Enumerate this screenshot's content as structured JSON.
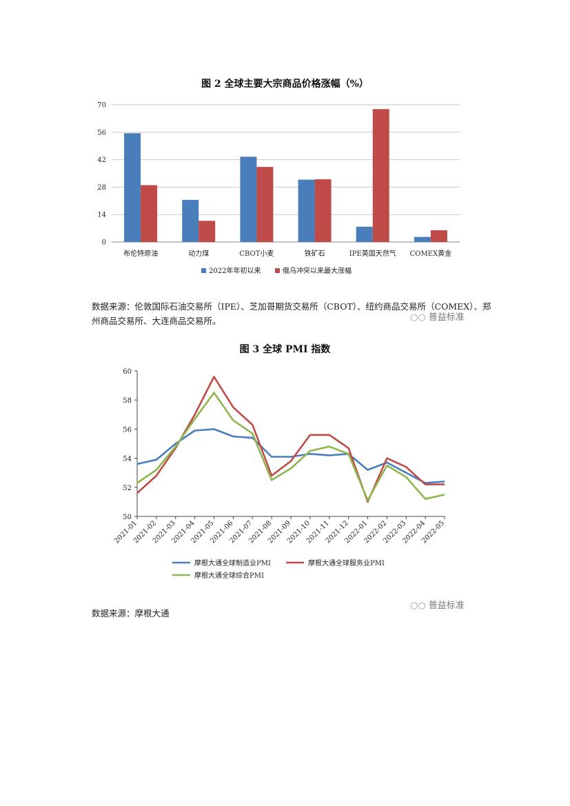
{
  "figure2": {
    "title": "图 2  全球主要大宗商品价格涨幅（%）",
    "source": "数据来源：伦敦国际石油交易所（IPE）、芝加哥期货交易所（CBOT）、纽约商品交易所（COMEX）、郑州商品交易所、大连商品交易所。",
    "watermark": "普益标准"
  },
  "figure3": {
    "title": "图 3  全球 PMI 指数",
    "source": "数据来源：摩根大通",
    "watermark": "普益标准"
  },
  "chart_data": [
    {
      "type": "bar",
      "title": "图 2  全球主要大宗商品价格涨幅（%）",
      "categories": [
        "布伦特原油",
        "动力煤",
        "CBOT小麦",
        "铁矿石",
        "IPE英国天然气",
        "COMEX黄金"
      ],
      "series": [
        {
          "name": "2022年年初以来",
          "color": "#4a7ebb",
          "values": [
            55.5,
            21.5,
            43.5,
            31.8,
            7.8,
            2.6
          ]
        },
        {
          "name": "俄乌冲突以来最大涨幅",
          "color": "#be4b48",
          "values": [
            29.0,
            10.8,
            38.3,
            32.0,
            67.8,
            6.0
          ]
        }
      ],
      "yticks": [
        0,
        14,
        28,
        42,
        56,
        70
      ],
      "ylim": [
        0,
        70
      ],
      "grid": true,
      "legend": "bottom"
    },
    {
      "type": "line",
      "title": "图 3  全球 PMI 指数",
      "x": [
        "2021-01",
        "2021-02",
        "2021-03",
        "2021-04",
        "2021-05",
        "2021-06",
        "2021-07",
        "2021-08",
        "2021-09",
        "2021-10",
        "2021-11",
        "2021-12",
        "2022-01",
        "2022-02",
        "2022-03",
        "2022-04",
        "2022-05"
      ],
      "series": [
        {
          "name": "摩根大通全球制造业PMI",
          "color": "#4a7ebb",
          "values": [
            53.6,
            53.9,
            55.0,
            55.9,
            56.0,
            55.5,
            55.4,
            54.1,
            54.1,
            54.3,
            54.2,
            54.3,
            53.2,
            53.7,
            53.0,
            52.3,
            52.4
          ]
        },
        {
          "name": "摩根大通全球服务业PMI",
          "color": "#be4b48",
          "values": [
            51.6,
            52.8,
            54.7,
            57.0,
            59.6,
            57.5,
            56.3,
            52.8,
            53.8,
            55.6,
            55.6,
            54.7,
            51.0,
            54.0,
            53.4,
            52.2,
            52.2
          ]
        },
        {
          "name": "摩根大通全球综合PMI",
          "color": "#8db74d",
          "values": [
            52.3,
            53.2,
            54.8,
            56.7,
            58.5,
            56.6,
            55.7,
            52.5,
            53.3,
            54.5,
            54.8,
            54.3,
            51.1,
            53.5,
            52.7,
            51.2,
            51.5
          ]
        }
      ],
      "yticks": [
        50,
        52,
        54,
        56,
        58,
        60
      ],
      "ylim": [
        50,
        60
      ],
      "grid": false,
      "legend": "bottom"
    }
  ]
}
